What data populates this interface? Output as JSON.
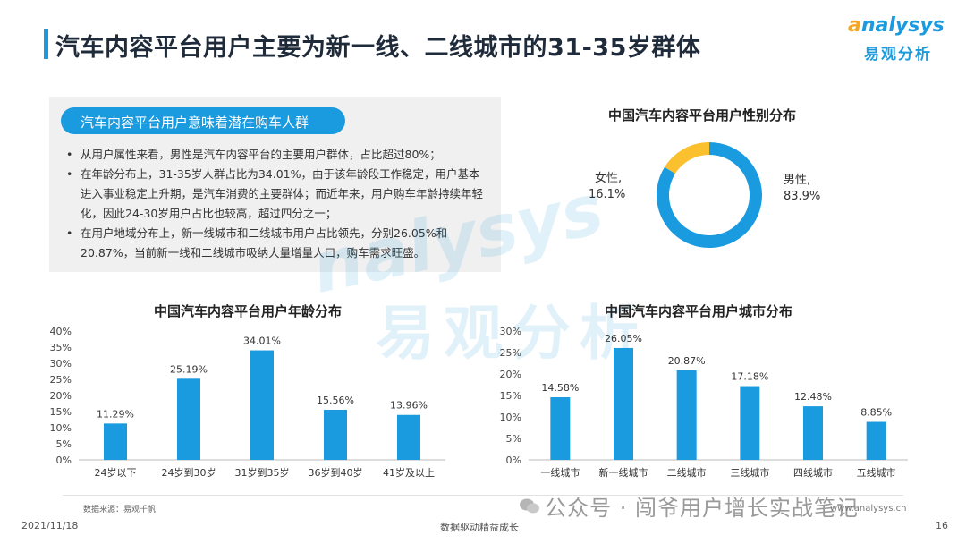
{
  "page": {
    "title": "汽车内容平台用户主要为新一线、二线城市的31-35岁群体",
    "date": "2021/11/18",
    "slogan": "数据驱动精益成长",
    "page_number": "16",
    "source": "数据来源：易观千帆",
    "wechat_watermark": "公众号 · 闯爷用户增长实战笔记",
    "site": "www.analysys.cn"
  },
  "logo": {
    "en_prefix": "a",
    "en_rest": "nalysys",
    "cn": "易观分析"
  },
  "info": {
    "header": "汽车内容平台用户意味着潜在购车人群",
    "bullets": [
      "从用户属性来看，男性是汽车内容平台的主要用户群体，占比超过80%；",
      "在年龄分布上，31-35岁人群占比为34.01%，由于该年龄段工作稳定，用户基本进入事业稳定上升期，是汽车消费的主要群体；而近年来，用户购车年龄持续年轻化，因此24-30岁用户占比也较高，超过四分之一；",
      "在用户地域分布上，新一线城市和二线城市用户占比领先，分别26.05%和20.87%，当前新一线和二线城市吸纳大量增量人口，购车需求旺盛。"
    ]
  },
  "chart_data": [
    {
      "type": "pie",
      "title": "中国汽车内容平台用户性别分布",
      "labels": [
        "男性,",
        "女性,"
      ],
      "value_labels": [
        "83.9%",
        "16.1%"
      ],
      "values": [
        83.9,
        16.1
      ],
      "colors": [
        "#1a9be0",
        "#fbc02d"
      ]
    },
    {
      "type": "bar",
      "title": "中国汽车内容平台用户年龄分布",
      "categories": [
        "24岁以下",
        "24岁到30岁",
        "31岁到35岁",
        "36岁到40岁",
        "41岁及以上"
      ],
      "values": [
        11.29,
        25.19,
        34.01,
        15.56,
        13.96
      ],
      "value_labels": [
        "11.29%",
        "25.19%",
        "34.01%",
        "15.56%",
        "13.96%"
      ],
      "yticks": [
        "0%",
        "5%",
        "10%",
        "15%",
        "20%",
        "25%",
        "30%",
        "35%",
        "40%"
      ],
      "ylim": [
        0,
        40
      ],
      "color": "#1a9be0"
    },
    {
      "type": "bar",
      "title": "中国汽车内容平台用户城市分布",
      "categories": [
        "一线城市",
        "新一线城市",
        "二线城市",
        "三线城市",
        "四线城市",
        "五线城市"
      ],
      "values": [
        14.58,
        26.05,
        20.87,
        17.18,
        12.48,
        8.85
      ],
      "value_labels": [
        "14.58%",
        "26.05%",
        "20.87%",
        "17.18%",
        "12.48%",
        "8.85%"
      ],
      "yticks": [
        "0%",
        "5%",
        "10%",
        "15%",
        "20%",
        "25%",
        "30%"
      ],
      "ylim": [
        0,
        30
      ],
      "color": "#1a9be0"
    }
  ]
}
